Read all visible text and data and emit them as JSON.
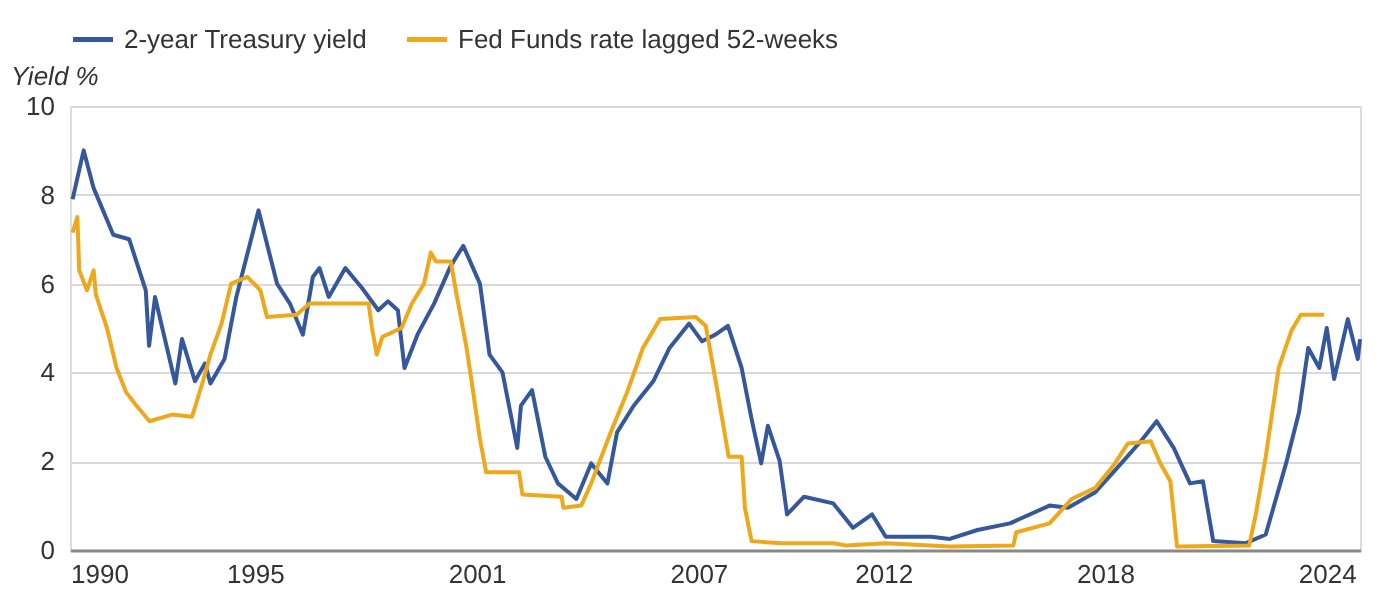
{
  "chart_data": {
    "type": "line",
    "ylabel": "Yield %",
    "xlim": [
      1990,
      2024.9
    ],
    "ylim": [
      0,
      10
    ],
    "yticks": [
      0,
      2,
      4,
      6,
      8,
      10
    ],
    "xticks": [
      {
        "value": 1990,
        "label": "1990"
      },
      1995,
      2001,
      {
        "value": 2007,
        "label": "2007"
      },
      2012,
      2018,
      {
        "value": 2024,
        "label": "2024"
      }
    ],
    "grid": "y",
    "legend": "top",
    "line_style": "solid",
    "marker": "none",
    "series": [
      {
        "name": "2-year Treasury yield",
        "color": "#35589c",
        "x": [
          1990.07,
          1990.37,
          1990.64,
          1991.17,
          1991.6,
          1992.05,
          1992.14,
          1992.3,
          1992.85,
          1993.03,
          1993.38,
          1993.65,
          1993.8,
          1994.18,
          1994.5,
          1995.1,
          1995.6,
          1995.95,
          1996.3,
          1996.57,
          1996.75,
          1997.0,
          1997.45,
          1997.9,
          1998.34,
          1998.6,
          1998.87,
          1999.05,
          1999.4,
          1999.85,
          2000.3,
          2000.64,
          2001.09,
          2001.35,
          2001.7,
          2002.1,
          2002.2,
          2002.5,
          2002.86,
          2003.2,
          2003.7,
          2004.1,
          2004.54,
          2004.8,
          2005.25,
          2005.78,
          2006.22,
          2006.75,
          2007.1,
          2007.46,
          2007.8,
          2008.17,
          2008.44,
          2008.7,
          2008.88,
          2009.2,
          2009.4,
          2009.86,
          2010.65,
          2011.18,
          2011.7,
          2012.07,
          2013.3,
          2013.8,
          2014.55,
          2015.43,
          2016.5,
          2017.0,
          2017.74,
          2018.44,
          2018.97,
          2019.4,
          2019.86,
          2020.3,
          2020.65,
          2020.93,
          2021.8,
          2022.35,
          2022.9,
          2023.25,
          2023.5,
          2023.8,
          2024.0,
          2024.2,
          2024.57,
          2024.84,
          2024.9
        ],
        "values": [
          7.9,
          9.0,
          8.15,
          7.1,
          7.0,
          5.85,
          4.6,
          5.7,
          3.75,
          4.75,
          3.8,
          4.2,
          3.75,
          4.3,
          5.7,
          7.65,
          6.0,
          5.55,
          4.85,
          6.15,
          6.35,
          5.7,
          6.35,
          5.9,
          5.4,
          5.6,
          5.4,
          4.1,
          4.85,
          5.55,
          6.4,
          6.85,
          6.0,
          4.4,
          4.0,
          2.3,
          3.25,
          3.6,
          2.1,
          1.5,
          1.15,
          1.95,
          1.5,
          2.65,
          3.25,
          3.8,
          4.55,
          5.1,
          4.7,
          4.85,
          5.05,
          4.1,
          2.95,
          1.95,
          2.8,
          2.0,
          0.8,
          1.2,
          1.05,
          0.5,
          0.8,
          0.3,
          0.3,
          0.25,
          0.45,
          0.6,
          1.0,
          0.95,
          1.3,
          1.95,
          2.45,
          2.9,
          2.3,
          1.5,
          1.55,
          0.2,
          0.15,
          0.35,
          1.95,
          3.1,
          4.55,
          4.1,
          5.0,
          3.85,
          5.2,
          4.3,
          4.75
        ]
      },
      {
        "name": "Fed Funds rate lagged 52-weeks",
        "color": "#eda81c",
        "x": [
          1990.07,
          1990.2,
          1990.25,
          1990.46,
          1990.64,
          1990.7,
          1991.0,
          1991.26,
          1991.52,
          1991.8,
          1992.15,
          1992.76,
          1993.3,
          1993.56,
          1993.8,
          1994.1,
          1994.36,
          1994.8,
          1995.15,
          1995.33,
          1996.13,
          1996.48,
          1998.08,
          1998.17,
          1998.3,
          1998.45,
          1998.97,
          1999.25,
          1999.58,
          1999.76,
          1999.9,
          2000.3,
          2000.47,
          2000.73,
          2000.9,
          2001.09,
          2001.26,
          2002.15,
          2002.24,
          2003.3,
          2003.35,
          2003.83,
          2004.1,
          2004.63,
          2005.07,
          2005.5,
          2005.96,
          2006.93,
          2007.2,
          2007.47,
          2007.82,
          2008.17,
          2008.26,
          2008.44,
          2009.23,
          2010.65,
          2011.0,
          2012.07,
          2013.8,
          2015.52,
          2015.6,
          2016.5,
          2017.1,
          2017.74,
          2018.27,
          2018.62,
          2019.24,
          2019.5,
          2019.77,
          2019.95,
          2021.9,
          2022.08,
          2022.35,
          2022.7,
          2023.05,
          2023.3,
          2023.93
        ],
        "values": [
          7.15,
          7.5,
          6.3,
          5.85,
          6.3,
          5.75,
          5.0,
          4.1,
          3.55,
          3.25,
          2.9,
          3.05,
          3.0,
          3.7,
          4.4,
          5.1,
          6.0,
          6.15,
          5.85,
          5.25,
          5.3,
          5.55,
          5.55,
          5.0,
          4.4,
          4.8,
          5.0,
          5.55,
          6.0,
          6.7,
          6.5,
          6.5,
          5.7,
          4.55,
          3.6,
          2.5,
          1.75,
          1.75,
          1.25,
          1.2,
          0.95,
          1.0,
          1.5,
          2.65,
          3.55,
          4.55,
          5.2,
          5.25,
          5.05,
          3.8,
          2.1,
          2.1,
          0.95,
          0.2,
          0.15,
          0.15,
          0.1,
          0.15,
          0.08,
          0.1,
          0.4,
          0.6,
          1.15,
          1.4,
          1.95,
          2.4,
          2.45,
          1.95,
          1.55,
          0.08,
          0.1,
          0.8,
          2.1,
          4.1,
          4.95,
          5.3,
          5.3
        ]
      }
    ]
  }
}
